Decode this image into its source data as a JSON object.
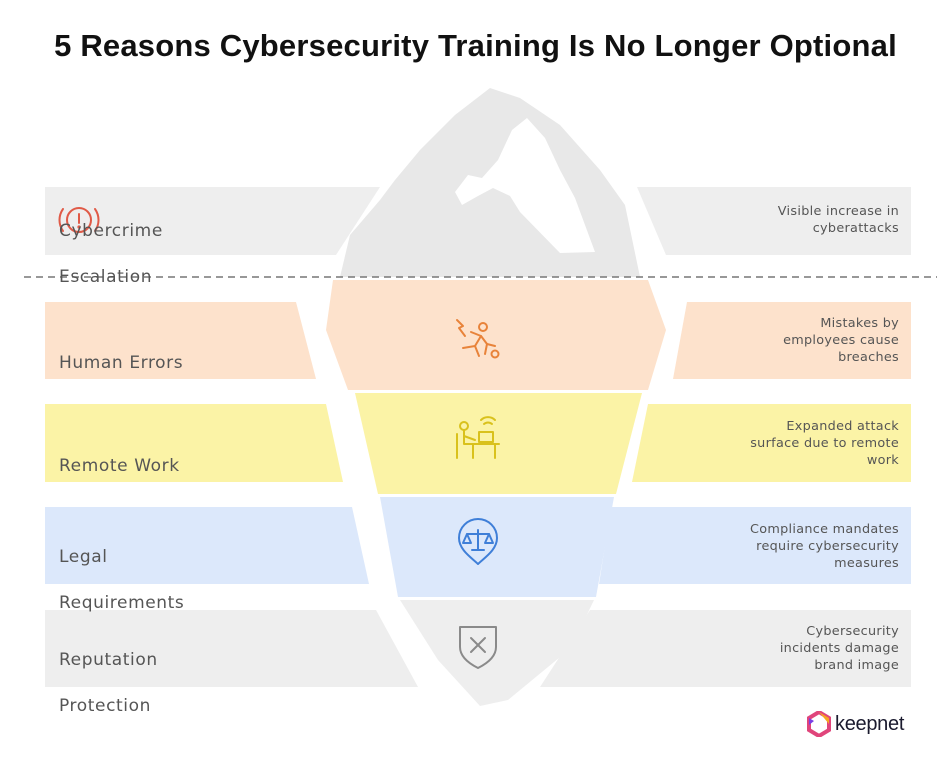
{
  "title": "5 Reasons Cybersecurity Training Is No Longer Optional",
  "colors": {
    "band_gray": "#eeeeee",
    "band_orange": "#fde2cc",
    "band_yellow": "#fbf3a6",
    "band_blue": "#dce8fb",
    "iceberg_top": "#e8e8e8",
    "icon_red": "#e05a47",
    "icon_orange": "#e8833a",
    "icon_yellow": "#d9c11c",
    "icon_blue": "#3f7fd8",
    "icon_gray": "#8a8a8a"
  },
  "reasons": [
    {
      "label_lines": [
        "Cybercrime",
        "Escalation"
      ],
      "desc_lines": [
        "Visible increase in",
        "cyberattacks"
      ],
      "icon": "alert-circle-icon"
    },
    {
      "label_lines": [
        "Human Errors"
      ],
      "desc_lines": [
        "Mistakes by",
        "employees cause",
        "breaches"
      ],
      "icon": "falling-person-icon"
    },
    {
      "label_lines": [
        "Remote Work"
      ],
      "desc_lines": [
        "Expanded attack",
        "surface due to remote",
        "work"
      ],
      "icon": "remote-worker-icon"
    },
    {
      "label_lines": [
        "Legal",
        "Requirements"
      ],
      "desc_lines": [
        "Compliance mandates",
        "require cybersecurity",
        "measures"
      ],
      "icon": "scales-shield-icon"
    },
    {
      "label_lines": [
        "Reputation",
        "Protection"
      ],
      "desc_lines": [
        "Cybersecurity",
        "incidents damage",
        "brand image"
      ],
      "icon": "broken-shield-icon"
    }
  ],
  "brand": {
    "name": "keepnet"
  }
}
